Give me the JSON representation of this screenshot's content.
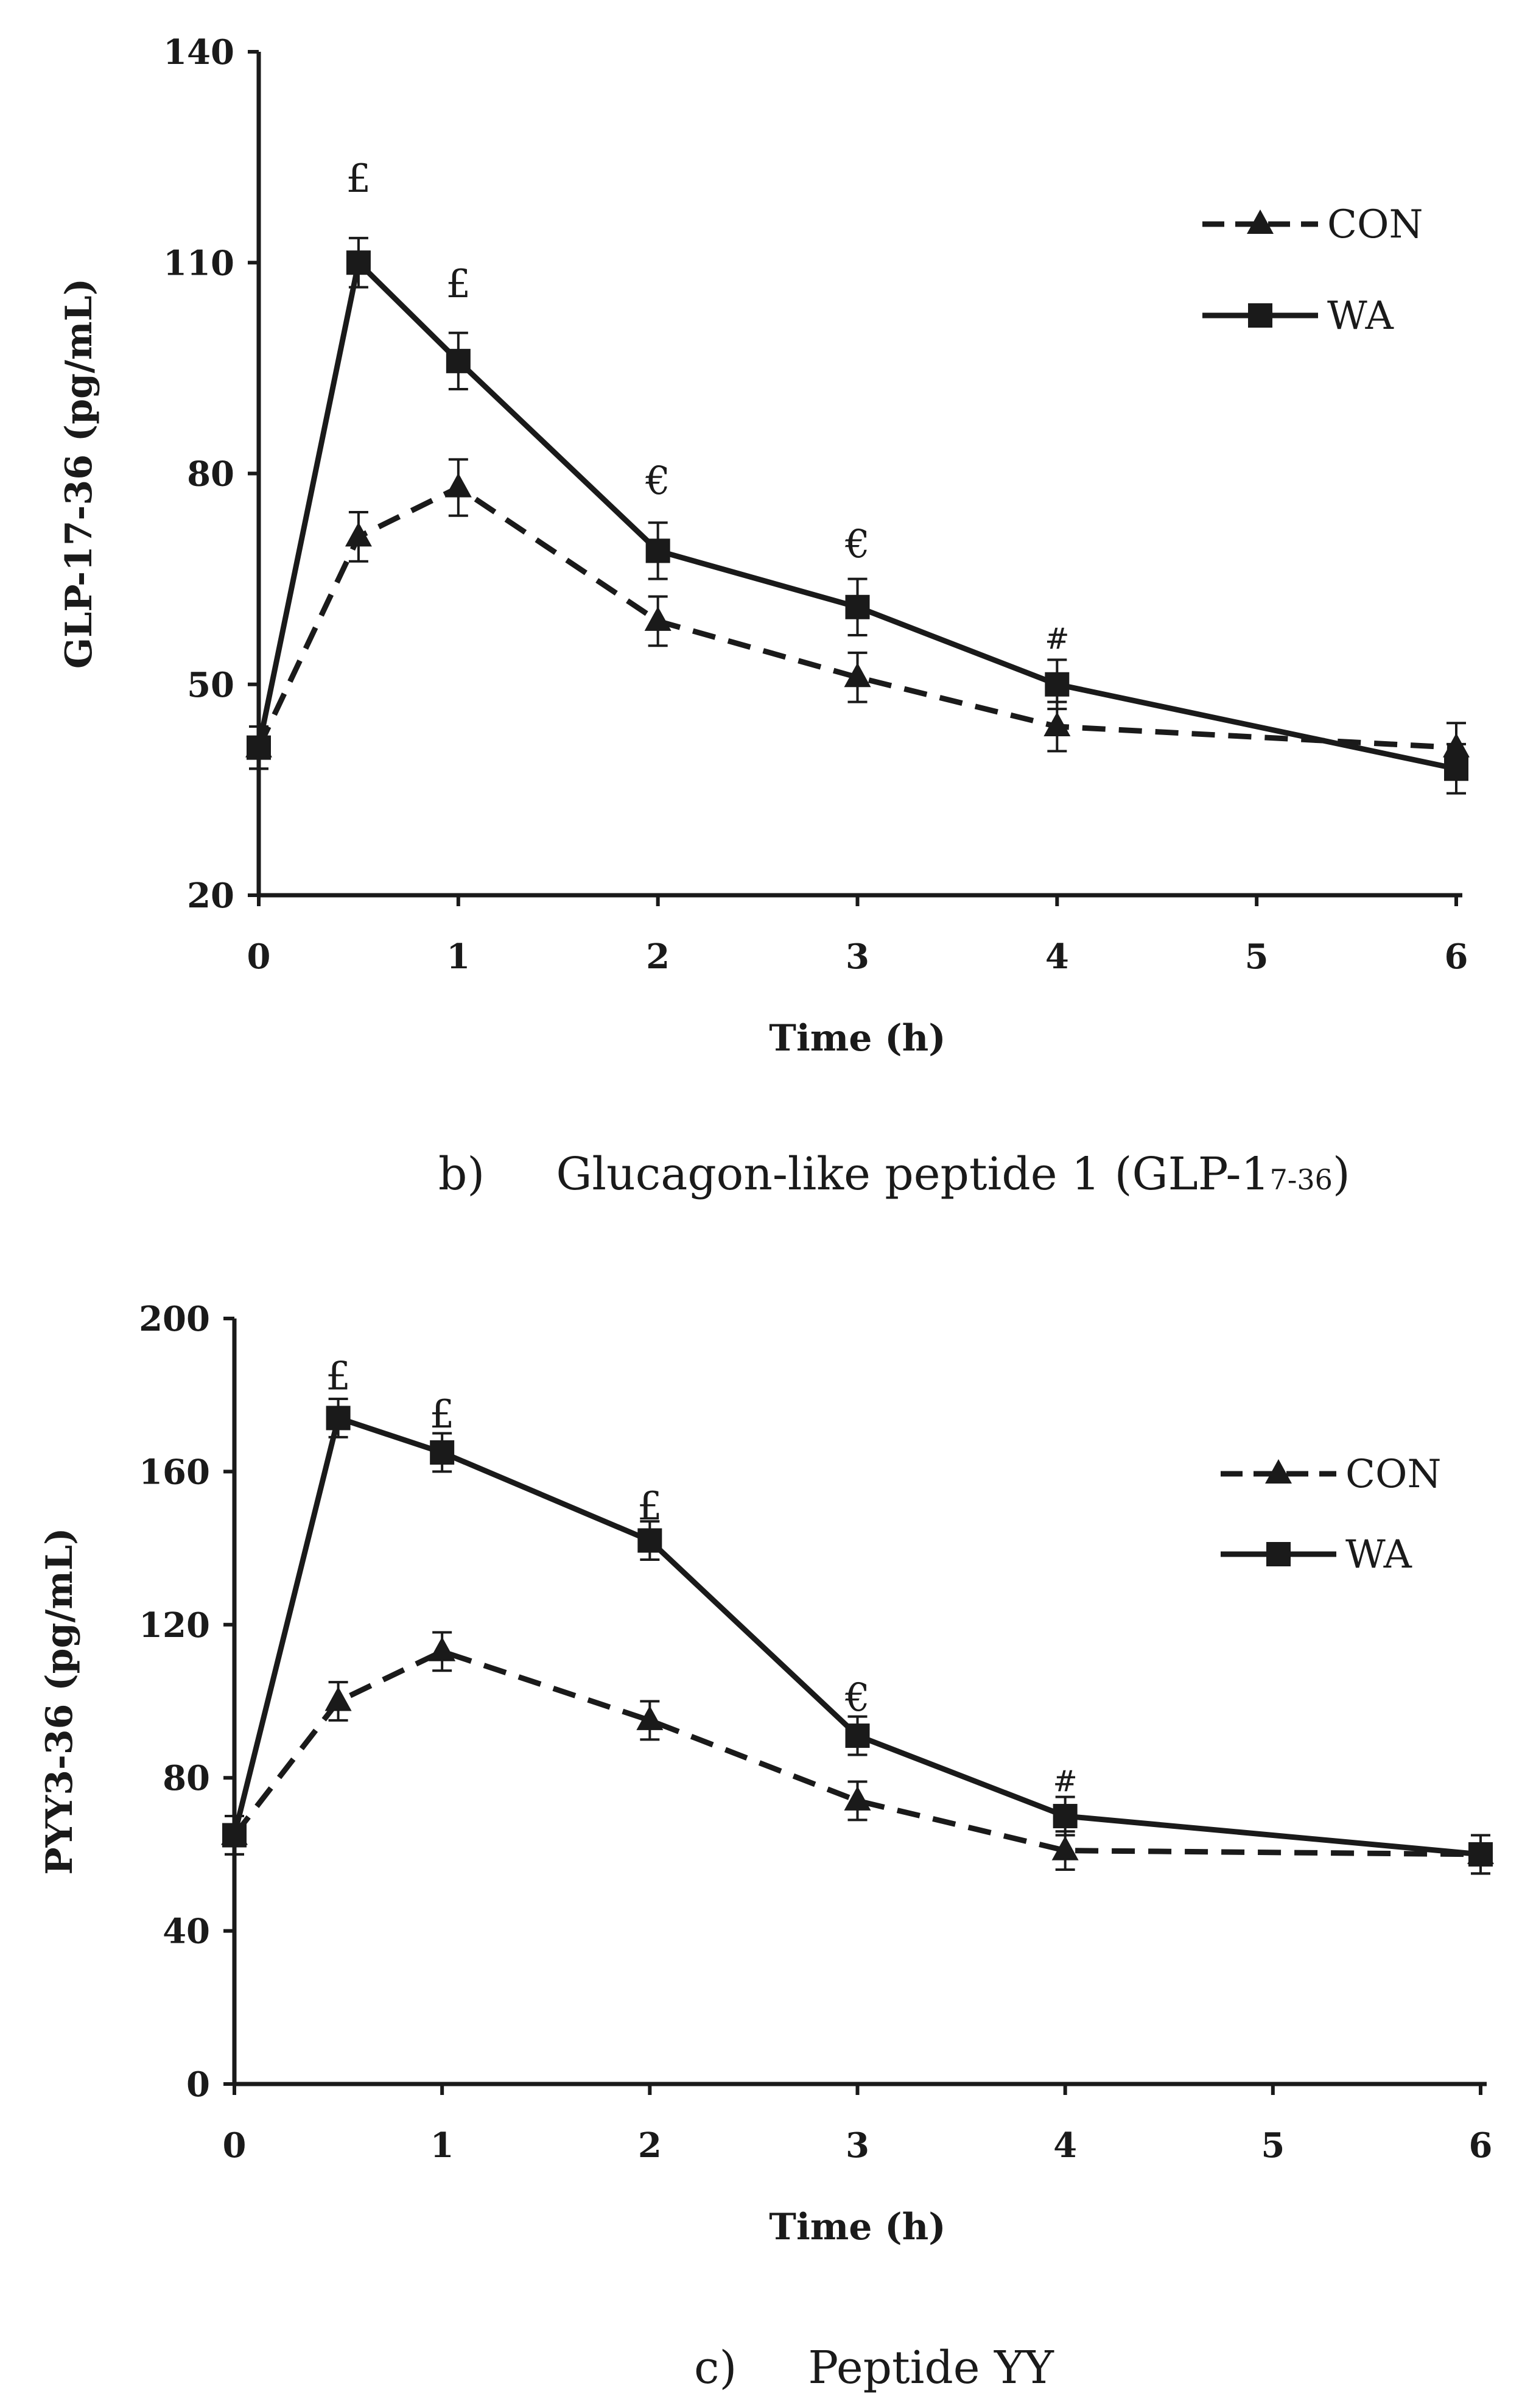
{
  "chart_data": [
    {
      "type": "line",
      "ylabel": "GLP-17-36 (pg/mL)",
      "xlabel": "Time (h)",
      "xlim": [
        0,
        6
      ],
      "ylim": [
        20,
        140
      ],
      "xticks": [
        0,
        1,
        2,
        3,
        4,
        5,
        6
      ],
      "yticks": [
        20,
        50,
        80,
        110,
        140
      ],
      "x": [
        0,
        0.5,
        1,
        2,
        3,
        4,
        6
      ],
      "series": [
        {
          "name": "CON",
          "marker": "triangle",
          "line": "dashed",
          "values": [
            41,
            71,
            78,
            59,
            51,
            44,
            41
          ],
          "errors": [
            3,
            3.5,
            4,
            3.5,
            3.5,
            3.5,
            3.5
          ]
        },
        {
          "name": "WA",
          "marker": "square",
          "line": "solid",
          "values": [
            41,
            110,
            96,
            69,
            61,
            50,
            38
          ],
          "errors": [
            3,
            3.5,
            4,
            4,
            4,
            3.5,
            3.5
          ]
        }
      ],
      "annotations": [
        {
          "x": 0.5,
          "text": "£",
          "y": 122
        },
        {
          "x": 1,
          "text": "£",
          "y": 107
        },
        {
          "x": 2,
          "text": "€",
          "y": 79
        },
        {
          "x": 3,
          "text": "€",
          "y": 70
        },
        {
          "x": 4,
          "text": "#",
          "y": 57
        }
      ],
      "legend": "top-right",
      "caption": {
        "label": "b)",
        "text": "Glucagon-like peptide 1 (GLP-1",
        "sub": "7-36",
        "close": ")"
      }
    },
    {
      "type": "line",
      "ylabel": "PYY3-36 (pg/mL)",
      "xlabel": "Time (h)",
      "xlim": [
        0,
        6
      ],
      "ylim": [
        0,
        200
      ],
      "xticks": [
        0,
        1,
        2,
        3,
        4,
        5,
        6
      ],
      "yticks": [
        0,
        40,
        80,
        120,
        160,
        200
      ],
      "x": [
        0,
        0.5,
        1,
        2,
        3,
        4,
        6
      ],
      "series": [
        {
          "name": "CON",
          "marker": "triangle",
          "line": "dashed",
          "values": [
            65,
            100,
            113,
            95,
            74,
            61,
            60
          ],
          "errors": [
            5,
            5,
            5,
            5,
            5,
            5,
            5
          ]
        },
        {
          "name": "WA",
          "marker": "square",
          "line": "solid",
          "values": [
            65,
            174,
            165,
            142,
            91,
            70,
            60
          ],
          "errors": [
            5,
            5,
            5,
            5,
            5,
            5,
            5
          ]
        }
      ],
      "annotations": [
        {
          "x": 0.5,
          "text": "£",
          "y": 185
        },
        {
          "x": 1,
          "text": "£",
          "y": 175
        },
        {
          "x": 2,
          "text": "£",
          "y": 151
        },
        {
          "x": 3,
          "text": "€",
          "y": 101
        },
        {
          "x": 4,
          "text": "#",
          "y": 80
        }
      ],
      "legend": "top-right",
      "caption": {
        "label": "c)",
        "text": "Peptide YY",
        "sub": "",
        "close": ""
      }
    }
  ]
}
